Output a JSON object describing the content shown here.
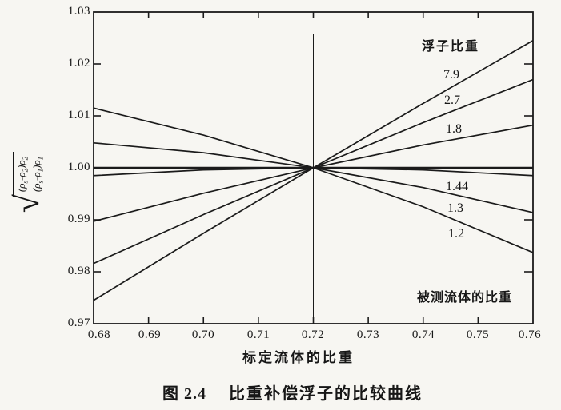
{
  "chart_data": {
    "type": "line",
    "title": "",
    "xlabel": "标定流体的比重",
    "ylabel": "sqrt(((ρs-ρ2)ρ2)/((ρs-ρ1)ρ1))",
    "xlim": [
      0.68,
      0.76
    ],
    "ylim": [
      0.97,
      1.03
    ],
    "grid": false,
    "legend_position": "inline-right",
    "x_ticks": [
      "0.68",
      "0.69",
      "0.70",
      "0.71",
      "0.72",
      "0.73",
      "0.74",
      "0.75",
      "0.76"
    ],
    "x_tick_values": [
      0.68,
      0.69,
      0.7,
      0.71,
      0.72,
      0.73,
      0.74,
      0.75,
      0.76
    ],
    "y_ticks": [
      "1.03",
      "1.02",
      "1.01",
      "1.00",
      "0.99",
      "0.98",
      "0.97"
    ],
    "y_tick_values": [
      1.03,
      1.02,
      1.01,
      1.0,
      0.99,
      0.98,
      0.97
    ],
    "x": [
      0.68,
      0.7,
      0.72,
      0.74,
      0.76
    ],
    "series": [
      {
        "name": "7.9",
        "label": "7.9",
        "values": [
          0.9745,
          0.9874,
          1.0,
          1.0124,
          1.0245
        ]
      },
      {
        "name": "2.7",
        "label": "2.7",
        "values": [
          0.9816,
          0.991,
          1.0,
          1.0087,
          1.017
        ]
      },
      {
        "name": "1.8",
        "label": "1.8",
        "values": [
          0.9897,
          0.9951,
          1.0,
          1.0044,
          1.0082
        ]
      },
      {
        "name": "1.44",
        "label": "1.44",
        "values": [
          0.9985,
          0.9996,
          1.0,
          0.9996,
          0.9985
        ]
      },
      {
        "name": "1.3",
        "label": "1.3",
        "values": [
          1.0048,
          1.0029,
          1.0,
          0.9962,
          0.9914
        ]
      },
      {
        "name": "1.2",
        "label": "1.2",
        "values": [
          1.0115,
          1.0063,
          1.0,
          0.9925,
          0.9837
        ]
      }
    ],
    "series_group_label": "浮子比重",
    "reference_line_y": 1.0,
    "vertical_line_x": 0.72,
    "vertical_line_label": "被测流体的比重",
    "line_color": "#1b1b1b"
  },
  "ylabel_formula": {
    "radical": "√",
    "numerator": [
      [
        "(ρ",
        "s"
      ],
      [
        "-ρ",
        "2"
      ],
      [
        ")ρ",
        "2"
      ]
    ],
    "denominator": [
      [
        "(ρ",
        "s"
      ],
      [
        "-ρ",
        "1"
      ],
      [
        ")ρ",
        "1"
      ]
    ]
  },
  "caption": {
    "prefix": "图 2.4",
    "title": "比重补偿浮子的比较曲线"
  }
}
